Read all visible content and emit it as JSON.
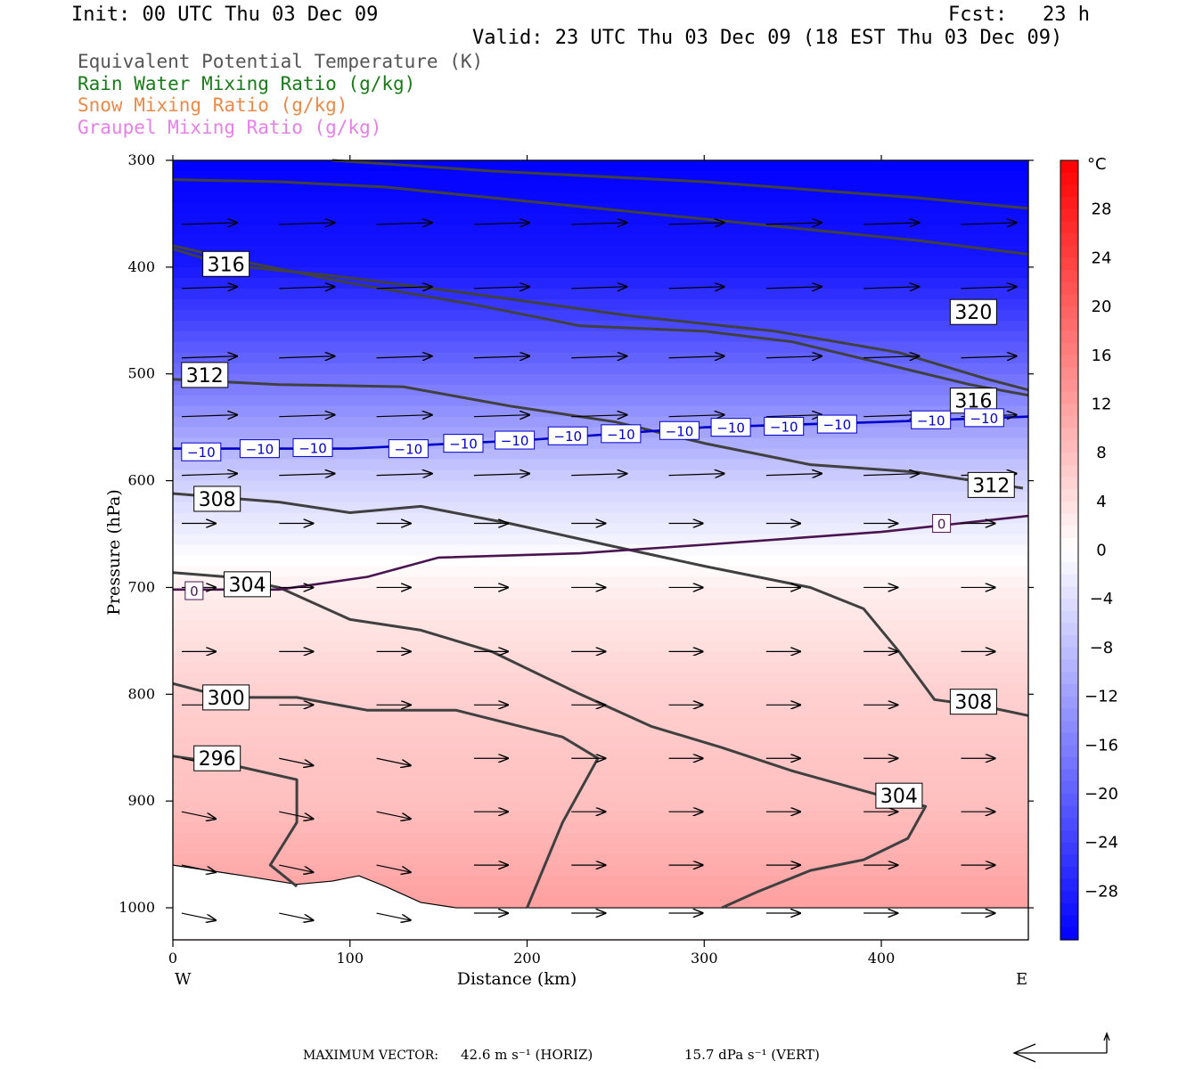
{
  "header": {
    "init": "Init: 00 UTC Thu 03 Dec 09",
    "fcst": "Fcst:   23 h",
    "valid": "Valid: 23 UTC Thu 03 Dec 09 (18 EST Thu 03 Dec 09)"
  },
  "legend": [
    {
      "label": "Equivalent Potential Temperature (K)",
      "color": "#555555"
    },
    {
      "label": "Rain Water Mixing Ratio (g/kg)",
      "color": "#1a7a1a"
    },
    {
      "label": "Snow Mixing Ratio (g/kg)",
      "color": "#e88a4a"
    },
    {
      "label": "Graupel Mixing Ratio (g/kg)",
      "color": "#e680e6"
    }
  ],
  "chart_data": {
    "type": "heatmap",
    "xlabel": "Distance (km)",
    "ylabel": "Pressure (hPa)",
    "xlim": [
      0,
      483
    ],
    "ylim": [
      1030,
      300
    ],
    "x_ticks": [
      0,
      100,
      200,
      300,
      400
    ],
    "y_ticks": [
      300,
      400,
      500,
      600,
      700,
      800,
      900,
      1000
    ],
    "x_end_labels": {
      "left": "W",
      "right": "E"
    },
    "colorbar": {
      "unit": "°C",
      "range": [
        -32,
        32
      ],
      "ticks": [
        28,
        24,
        20,
        16,
        12,
        8,
        4,
        0,
        -4,
        -8,
        -12,
        -16,
        -20,
        -24,
        -28
      ],
      "min_color": "#0000ff",
      "mid_color": "#ffffff",
      "max_color": "#ff0000"
    },
    "temperature_profile": [
      {
        "p": 300,
        "t": -32
      },
      {
        "p": 400,
        "t": -29
      },
      {
        "p": 500,
        "t": -18
      },
      {
        "p": 600,
        "t": -6
      },
      {
        "p": 700,
        "t": 2
      },
      {
        "p": 800,
        "t": 6
      },
      {
        "p": 900,
        "t": 8
      },
      {
        "p": 1000,
        "t": 12
      }
    ],
    "theta_e_contours": [
      {
        "value": 320,
        "points": [
          [
            90,
            300
          ],
          [
            180,
            310
          ],
          [
            300,
            320
          ],
          [
            420,
            335
          ],
          [
            483,
            345
          ]
        ]
      },
      {
        "value": 320,
        "points": [
          [
            0,
            318
          ],
          [
            60,
            320
          ],
          [
            120,
            325
          ],
          [
            180,
            335
          ],
          [
            240,
            345
          ],
          [
            300,
            355
          ],
          [
            360,
            365
          ],
          [
            420,
            375
          ],
          [
            483,
            388
          ]
        ]
      },
      {
        "value": 320,
        "points": [
          [
            0,
            380
          ],
          [
            40,
            395
          ],
          [
            100,
            415
          ],
          [
            170,
            435
          ],
          [
            230,
            455
          ],
          [
            300,
            460
          ],
          [
            350,
            470
          ],
          [
            400,
            490
          ],
          [
            450,
            510
          ],
          [
            483,
            520
          ]
        ]
      },
      {
        "value": 316,
        "points": [
          [
            0,
            383
          ],
          [
            30,
            398
          ],
          [
            90,
            408
          ],
          [
            160,
            423
          ],
          [
            260,
            446
          ],
          [
            340,
            460
          ],
          [
            410,
            480
          ],
          [
            460,
            505
          ],
          [
            483,
            515
          ]
        ]
      },
      {
        "value": 312,
        "points": [
          [
            0,
            505
          ],
          [
            60,
            510
          ],
          [
            130,
            512
          ],
          [
            190,
            530
          ],
          [
            250,
            545
          ],
          [
            300,
            565
          ],
          [
            360,
            585
          ],
          [
            420,
            592
          ],
          [
            480,
            607
          ]
        ]
      },
      {
        "value": 308,
        "points": [
          [
            0,
            612
          ],
          [
            60,
            620
          ],
          [
            100,
            630
          ],
          [
            140,
            624
          ],
          [
            190,
            640
          ],
          [
            250,
            662
          ],
          [
            300,
            680
          ],
          [
            360,
            700
          ],
          [
            390,
            720
          ],
          [
            410,
            760
          ],
          [
            430,
            805
          ],
          [
            460,
            812
          ],
          [
            483,
            820
          ]
        ]
      },
      {
        "value": 304,
        "points": [
          [
            0,
            686
          ],
          [
            30,
            690
          ],
          [
            60,
            700
          ],
          [
            100,
            730
          ],
          [
            140,
            740
          ],
          [
            180,
            760
          ],
          [
            230,
            800
          ],
          [
            270,
            830
          ],
          [
            310,
            850
          ],
          [
            350,
            872
          ],
          [
            400,
            895
          ],
          [
            425,
            905
          ],
          [
            415,
            935
          ],
          [
            390,
            955
          ],
          [
            360,
            965
          ],
          [
            330,
            985
          ],
          [
            310,
            1000
          ]
        ]
      },
      {
        "value": 300,
        "points": [
          [
            0,
            790
          ],
          [
            30,
            803
          ],
          [
            70,
            803
          ],
          [
            110,
            815
          ],
          [
            160,
            815
          ],
          [
            220,
            840
          ],
          [
            240,
            860
          ],
          [
            220,
            920
          ],
          [
            200,
            1000
          ]
        ]
      },
      {
        "value": 296,
        "points": [
          [
            0,
            858
          ],
          [
            30,
            865
          ],
          [
            70,
            880
          ],
          [
            70,
            920
          ],
          [
            55,
            960
          ],
          [
            70,
            980
          ]
        ]
      }
    ],
    "theta_e_labels": [
      {
        "value": 316,
        "x": 30,
        "p": 397
      },
      {
        "value": 312,
        "x": 18,
        "p": 501
      },
      {
        "value": 308,
        "x": 25,
        "p": 617
      },
      {
        "value": 304,
        "x": 42,
        "p": 697
      },
      {
        "value": 300,
        "x": 30,
        "p": 803
      },
      {
        "value": 296,
        "x": 25,
        "p": 860
      },
      {
        "value": 320,
        "x": 452,
        "p": 442
      },
      {
        "value": 316,
        "x": 452,
        "p": 525
      },
      {
        "value": 312,
        "x": 462,
        "p": 604
      },
      {
        "value": 308,
        "x": 452,
        "p": 807
      },
      {
        "value": 304,
        "x": 410,
        "p": 895
      }
    ],
    "isotherms": [
      {
        "value": -10,
        "color": "#0000c8",
        "points": [
          [
            0,
            570
          ],
          [
            100,
            570
          ],
          [
            200,
            562
          ],
          [
            300,
            550
          ],
          [
            400,
            545
          ],
          [
            483,
            540
          ]
        ]
      },
      {
        "value": 0,
        "color": "#4a1450",
        "points": [
          [
            0,
            702
          ],
          [
            60,
            702
          ],
          [
            110,
            690
          ],
          [
            150,
            672
          ],
          [
            230,
            668
          ],
          [
            300,
            660
          ],
          [
            400,
            648
          ],
          [
            483,
            633
          ]
        ]
      }
    ],
    "isotherm_labels": [
      {
        "value": "−10",
        "x": 16,
        "p": 573
      },
      {
        "value": "−10",
        "x": 49,
        "p": 570
      },
      {
        "value": "−10",
        "x": 79,
        "p": 569
      },
      {
        "value": "−10",
        "x": 133,
        "p": 570
      },
      {
        "value": "−10",
        "x": 164,
        "p": 565
      },
      {
        "value": "−10",
        "x": 193,
        "p": 562
      },
      {
        "value": "−10",
        "x": 223,
        "p": 558
      },
      {
        "value": "−10",
        "x": 253,
        "p": 556
      },
      {
        "value": "−10",
        "x": 286,
        "p": 553
      },
      {
        "value": "−10",
        "x": 315,
        "p": 550
      },
      {
        "value": "−10",
        "x": 345,
        "p": 549
      },
      {
        "value": "−10",
        "x": 375,
        "p": 547
      },
      {
        "value": "−10",
        "x": 428,
        "p": 543
      },
      {
        "value": "−10",
        "x": 458,
        "p": 541
      },
      {
        "value": "0",
        "x": 12,
        "p": 703
      },
      {
        "value": "0",
        "x": 434,
        "p": 640
      }
    ],
    "terrain_surface": [
      [
        0,
        960
      ],
      [
        40,
        970
      ],
      [
        70,
        978
      ],
      [
        90,
        975
      ],
      [
        105,
        970
      ],
      [
        120,
        980
      ],
      [
        140,
        995
      ],
      [
        160,
        1000
      ],
      [
        483,
        1000
      ]
    ],
    "max_vector": {
      "horiz": "42.6 m s⁻¹ (HORIZ)",
      "vert": "15.7 dPa s⁻¹ (VERT)",
      "label": "MAXIMUM VECTOR:"
    }
  }
}
